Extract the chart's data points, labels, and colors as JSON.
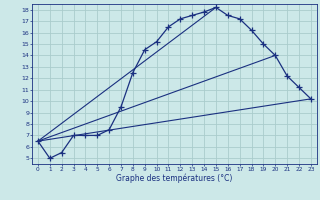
{
  "xlabel": "Graphe des températures (°C)",
  "bg_color": "#cce8e8",
  "grid_color": "#aacccc",
  "line_color": "#1a3080",
  "xlim": [
    -0.5,
    23.5
  ],
  "ylim": [
    4.5,
    18.5
  ],
  "xticks": [
    0,
    1,
    2,
    3,
    4,
    5,
    6,
    7,
    8,
    9,
    10,
    11,
    12,
    13,
    14,
    15,
    16,
    17,
    18,
    19,
    20,
    21,
    22,
    23
  ],
  "yticks": [
    5,
    6,
    7,
    8,
    9,
    10,
    11,
    12,
    13,
    14,
    15,
    16,
    17,
    18
  ],
  "curve1_x": [
    0,
    1,
    2,
    3,
    4,
    5,
    6,
    7,
    8,
    9,
    10,
    11,
    12,
    13,
    14,
    15,
    16,
    17,
    18,
    19,
    20,
    21,
    22,
    23
  ],
  "curve1_y": [
    6.5,
    5.0,
    5.5,
    7.0,
    7.0,
    7.0,
    7.5,
    9.5,
    12.5,
    14.5,
    15.2,
    16.5,
    17.2,
    17.5,
    17.8,
    18.2,
    17.5,
    17.2,
    16.2,
    15.0,
    14.0,
    12.2,
    11.2,
    10.2
  ],
  "line2_x": [
    0,
    15
  ],
  "line2_y": [
    6.5,
    18.2
  ],
  "line3_x": [
    0,
    23
  ],
  "line3_y": [
    6.5,
    10.2
  ],
  "line4_x": [
    0,
    20
  ],
  "line4_y": [
    6.5,
    14.0
  ]
}
